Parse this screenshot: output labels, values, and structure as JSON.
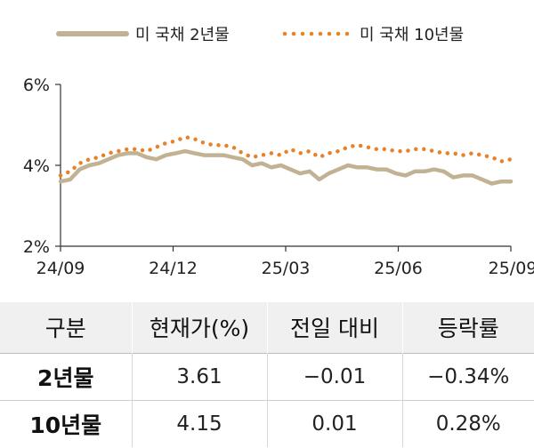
{
  "chart_data": {
    "type": "line",
    "legend_position": "top",
    "grid": false,
    "xlabel": "",
    "ylabel": "",
    "x_ticks": [
      "24/09",
      "24/12",
      "25/03",
      "25/06",
      "25/09"
    ],
    "y_ticks": [
      "2%",
      "4%",
      "6%"
    ],
    "ylim": [
      2,
      6
    ],
    "series": [
      {
        "name": "미 국채 2년물",
        "style": "solid",
        "color": "#c2b294",
        "values": [
          3.6,
          3.65,
          3.9,
          4.0,
          4.05,
          4.15,
          4.25,
          4.3,
          4.3,
          4.2,
          4.15,
          4.25,
          4.3,
          4.35,
          4.3,
          4.25,
          4.25,
          4.25,
          4.2,
          4.15,
          4.0,
          4.05,
          3.95,
          4.0,
          3.9,
          3.8,
          3.85,
          3.65,
          3.8,
          3.9,
          4.0,
          3.95,
          3.95,
          3.9,
          3.9,
          3.8,
          3.75,
          3.85,
          3.85,
          3.9,
          3.85,
          3.7,
          3.75,
          3.75,
          3.65,
          3.55,
          3.6,
          3.6
        ]
      },
      {
        "name": "미 국채 10년물",
        "style": "dotted",
        "color": "#e8822a",
        "values": [
          3.75,
          3.85,
          4.05,
          4.15,
          4.2,
          4.3,
          4.35,
          4.4,
          4.4,
          4.35,
          4.45,
          4.55,
          4.6,
          4.7,
          4.65,
          4.55,
          4.5,
          4.5,
          4.45,
          4.3,
          4.2,
          4.25,
          4.3,
          4.25,
          4.4,
          4.3,
          4.35,
          4.2,
          4.3,
          4.35,
          4.45,
          4.5,
          4.45,
          4.4,
          4.4,
          4.35,
          4.35,
          4.4,
          4.4,
          4.35,
          4.3,
          4.3,
          4.25,
          4.3,
          4.25,
          4.2,
          4.1,
          4.15
        ]
      }
    ]
  },
  "table": {
    "headers": [
      "구분",
      "현재가(%)",
      "전일 대비",
      "등락률"
    ],
    "rows": [
      [
        "2년물",
        "3.61",
        "−0.01",
        "−0.34%"
      ],
      [
        "10년물",
        "4.15",
        "0.01",
        "0.28%"
      ]
    ]
  }
}
